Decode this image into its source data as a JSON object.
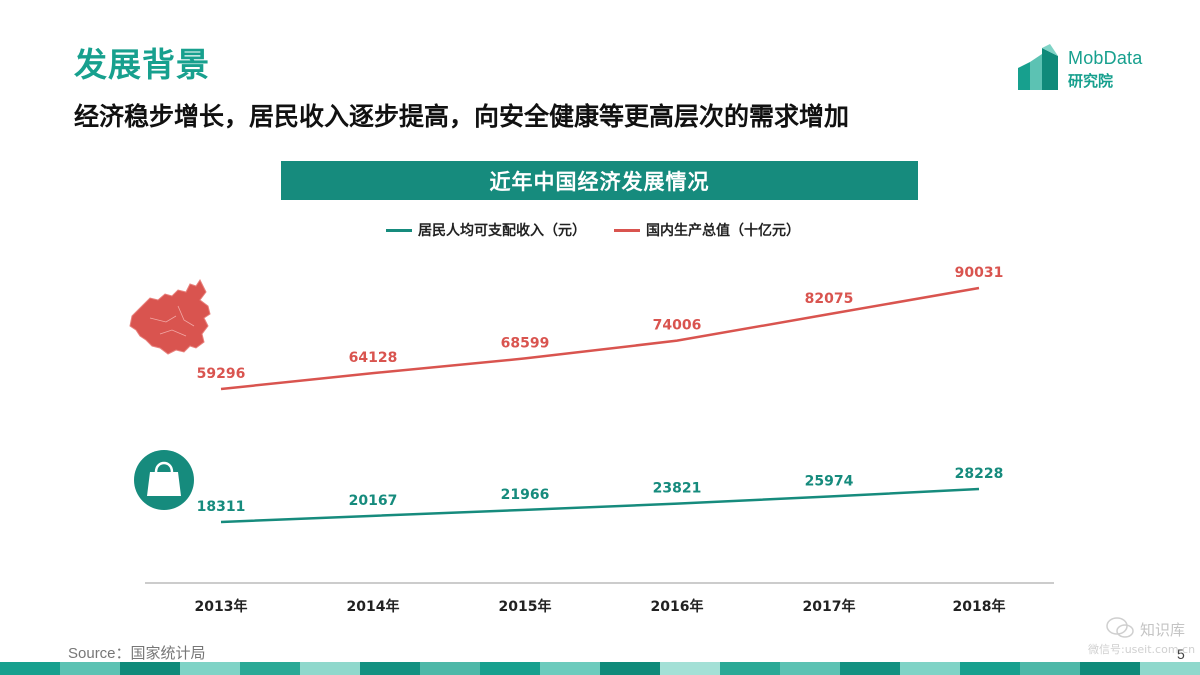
{
  "header": {
    "title": "发展背景",
    "subtitle": "经济稳步增长，居民收入逐步提高，向安全健康等更高层次的需求增加"
  },
  "logo": {
    "name": "MobData",
    "sub": "研究院"
  },
  "chart_data": {
    "type": "line",
    "title": "近年中国经济发展情况",
    "categories": [
      "2013年",
      "2014年",
      "2015年",
      "2016年",
      "2017年",
      "2018年"
    ],
    "series": [
      {
        "name": "居民人均可支配收入（元）",
        "values": [
          18311,
          20167,
          21966,
          23821,
          25974,
          28228
        ],
        "color": "#168b7d"
      },
      {
        "name": "国内生产总值（十亿元）",
        "values": [
          59296,
          64128,
          68599,
          74006,
          82075,
          90031
        ],
        "color": "#d9544f"
      }
    ],
    "legend": "top-center",
    "grid": false,
    "icons": [
      "china-map-icon",
      "shopping-bag-icon"
    ]
  },
  "footer": {
    "source": "Source：国家统计局",
    "page": "5",
    "watermark_line1": "知识库",
    "watermark_line2": "微信号:useit.com.cn"
  },
  "colors": {
    "accent": "#17a08e",
    "banner": "#168b7d",
    "gdp": "#d9544f"
  }
}
